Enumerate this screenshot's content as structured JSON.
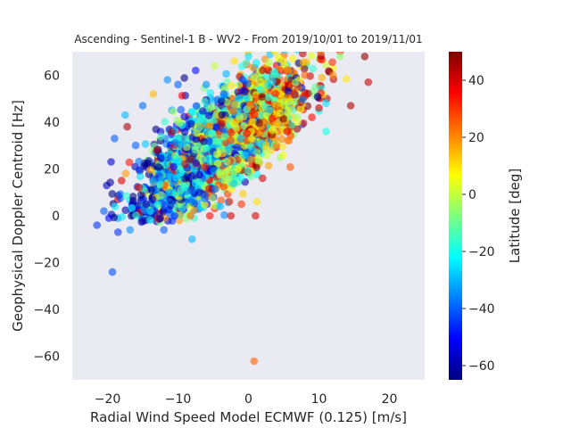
{
  "chart_data": {
    "type": "scatter",
    "title": "Ascending - Sentinel-1 B - WV2 - From 2019/10/01 to 2019/11/01",
    "xlabel": "Radial Wind Speed Model ECMWF (0.125) [m/s]",
    "ylabel": "Geophysical Doppler Centroid [Hz]",
    "xlim": [
      -25,
      25
    ],
    "ylim": [
      -70,
      70
    ],
    "xticks": [
      -20,
      -10,
      0,
      10,
      20
    ],
    "yticks": [
      -60,
      -40,
      -20,
      0,
      20,
      40,
      60
    ],
    "grid": false,
    "background": "#eaeaf2",
    "marker_alpha": 0.6,
    "colorbar": {
      "label": "Latitude [deg]",
      "colormap": "jet",
      "range": [
        -65,
        50
      ],
      "ticks": [
        -60,
        -40,
        -20,
        0,
        20,
        40
      ]
    },
    "colors": {
      "jet": [
        "#00007f",
        "#0000ff",
        "#007fff",
        "#00ffff",
        "#7fff7f",
        "#ffff00",
        "#ff7f00",
        "#ff0000",
        "#7f0000"
      ]
    },
    "points": [
      {
        "x": -21.5,
        "y": -4,
        "lat": -45
      },
      {
        "x": -20.5,
        "y": 2,
        "lat": -40
      },
      {
        "x": -19.8,
        "y": -1,
        "lat": -50
      },
      {
        "x": -19.3,
        "y": -24,
        "lat": -42
      },
      {
        "x": -19.5,
        "y": 23,
        "lat": -55
      },
      {
        "x": -19,
        "y": 33,
        "lat": -40
      },
      {
        "x": -18.5,
        "y": -7,
        "lat": -45
      },
      {
        "x": -18,
        "y": 15,
        "lat": 40
      },
      {
        "x": -17.5,
        "y": 43,
        "lat": -30
      },
      {
        "x": -17.2,
        "y": 38,
        "lat": 45
      },
      {
        "x": -16.8,
        "y": -6,
        "lat": -35
      },
      {
        "x": -16,
        "y": 30,
        "lat": -40
      },
      {
        "x": -15.5,
        "y": 12,
        "lat": 35
      },
      {
        "x": -15,
        "y": 47,
        "lat": -38
      },
      {
        "x": -14.5,
        "y": 5,
        "lat": -60
      },
      {
        "x": -13.5,
        "y": 52,
        "lat": 15
      },
      {
        "x": -13,
        "y": 28,
        "lat": 42
      },
      {
        "x": -12,
        "y": -6,
        "lat": -40
      },
      {
        "x": -11.5,
        "y": 58,
        "lat": -35
      },
      {
        "x": -10.5,
        "y": 0,
        "lat": -45
      },
      {
        "x": -10,
        "y": 56,
        "lat": -40
      },
      {
        "x": -9,
        "y": 22,
        "lat": 40
      },
      {
        "x": -8,
        "y": -10,
        "lat": -30
      },
      {
        "x": -8.2,
        "y": 0,
        "lat": 25
      },
      {
        "x": -7.5,
        "y": 62,
        "lat": -50
      },
      {
        "x": -7,
        "y": 10,
        "lat": -55
      },
      {
        "x": -6,
        "y": 56,
        "lat": -35
      },
      {
        "x": -5.5,
        "y": 0,
        "lat": 35
      },
      {
        "x": -4.8,
        "y": 64,
        "lat": 0
      },
      {
        "x": -4,
        "y": 4,
        "lat": -30
      },
      {
        "x": -3.5,
        "y": 52,
        "lat": -42
      },
      {
        "x": -2.5,
        "y": 0,
        "lat": 40
      },
      {
        "x": -2,
        "y": 66,
        "lat": 10
      },
      {
        "x": -1.5,
        "y": 20,
        "lat": 5
      },
      {
        "x": -1,
        "y": 5,
        "lat": 30
      },
      {
        "x": 0,
        "y": 68,
        "lat": -25
      },
      {
        "x": 0.5,
        "y": 40,
        "lat": 15
      },
      {
        "x": 0.8,
        "y": -62,
        "lat": 25
      },
      {
        "x": 1,
        "y": 0,
        "lat": 40
      },
      {
        "x": 1.2,
        "y": 6,
        "lat": 10
      },
      {
        "x": 2,
        "y": 16,
        "lat": 40
      },
      {
        "x": 2,
        "y": 62,
        "lat": 45
      },
      {
        "x": 3,
        "y": 45,
        "lat": -10
      },
      {
        "x": 4,
        "y": 30,
        "lat": 20
      },
      {
        "x": 5,
        "y": 66,
        "lat": 10
      },
      {
        "x": 5.5,
        "y": 36,
        "lat": 40
      },
      {
        "x": 6.5,
        "y": 52,
        "lat": 30
      },
      {
        "x": 7,
        "y": 40,
        "lat": 5
      },
      {
        "x": 8,
        "y": 60,
        "lat": 25
      },
      {
        "x": 9,
        "y": 42,
        "lat": 35
      },
      {
        "x": 9.5,
        "y": 55,
        "lat": -10
      },
      {
        "x": 10,
        "y": 46,
        "lat": 40
      },
      {
        "x": 11,
        "y": 36,
        "lat": -20
      },
      {
        "x": 11,
        "y": 48,
        "lat": -25
      },
      {
        "x": 12,
        "y": 60,
        "lat": 20
      },
      {
        "x": 13,
        "y": 68,
        "lat": -5
      },
      {
        "x": 14.5,
        "y": 47,
        "lat": 45
      },
      {
        "x": 16.5,
        "y": 68,
        "lat": 48
      },
      {
        "x": 17,
        "y": 57,
        "lat": 42
      }
    ],
    "cloud": {
      "count": 2600,
      "x_mean": -4,
      "x_sd": 5.8,
      "slope": 2.05,
      "intercept": 39,
      "residual_sd": 10,
      "seed": 7
    }
  }
}
